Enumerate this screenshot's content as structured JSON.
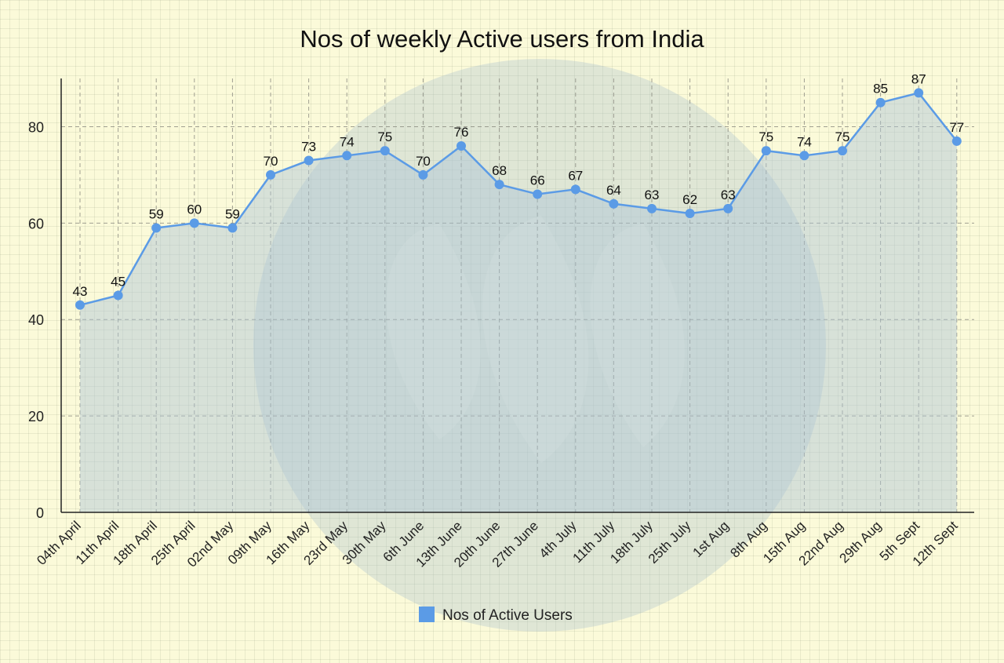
{
  "chart_data": {
    "type": "line",
    "title": "Nos of weekly Active users from India",
    "categories": [
      "04th April",
      "11th April",
      "18th April",
      "25th April",
      "02nd May",
      "09th May",
      "16th May",
      "23rd May",
      "30th May",
      "6th June",
      "13th June",
      "20th June",
      "27th June",
      "4th July",
      "11th July",
      "18th July",
      "25th July",
      "1st Aug",
      "8th Aug",
      "15th Aug",
      "22nd Aug",
      "29th Aug",
      "5th Sept",
      "12th Sept"
    ],
    "series": [
      {
        "name": "Nos of Active Users",
        "values": [
          43,
          45,
          59,
          60,
          59,
          70,
          73,
          74,
          75,
          70,
          76,
          68,
          66,
          67,
          64,
          63,
          62,
          63,
          75,
          74,
          75,
          85,
          87,
          77
        ]
      }
    ],
    "ylim": [
      0,
      90
    ],
    "yticks": [
      0,
      20,
      40,
      60,
      80
    ],
    "grid": true,
    "legend_position": "bottom",
    "colors": {
      "line": "#5b9be6",
      "area": "rgba(170,195,215,0.45)",
      "grid": "#8a8a80",
      "axis": "#222222",
      "watermark": "rgba(160,185,205,0.35)"
    }
  }
}
